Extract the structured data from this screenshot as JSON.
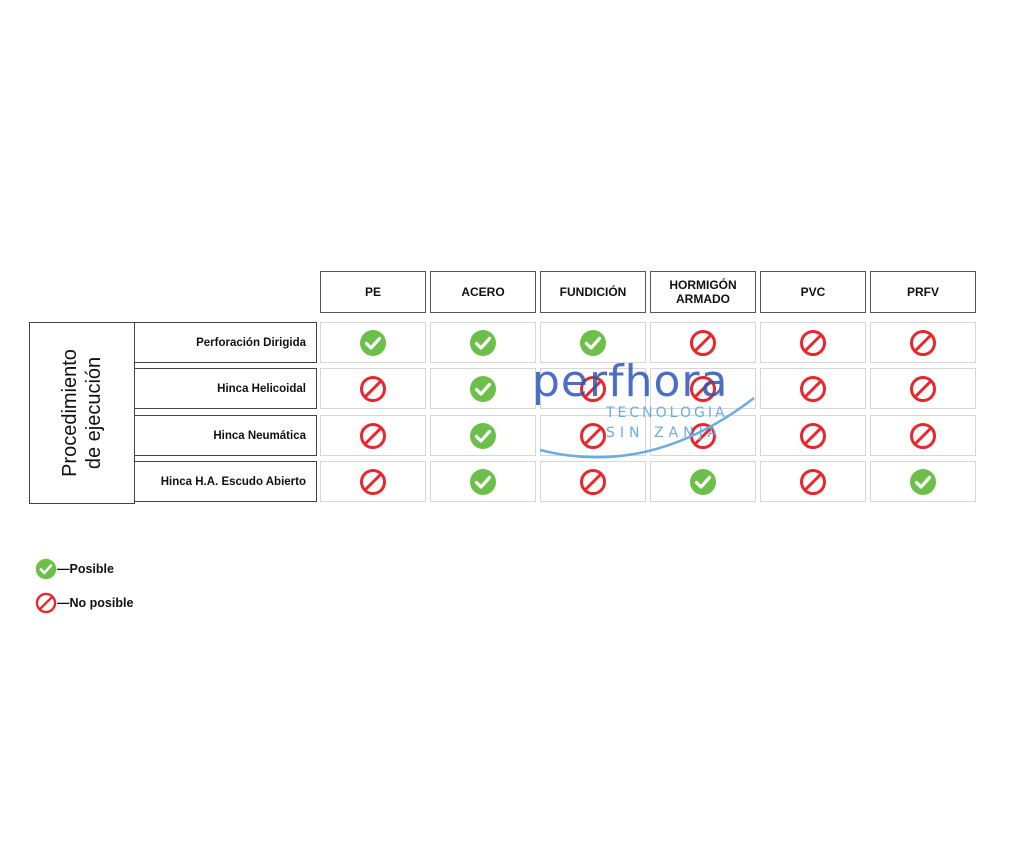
{
  "table": {
    "group_label": "Procedimiento\nde ejecución",
    "columns": [
      "PE",
      "ACERO",
      "FUNDICIÓN",
      "HORMIGÓN\nARMADO",
      "PVC",
      "PRFV"
    ],
    "rows": [
      {
        "label": "Perforación Dirigida",
        "values": [
          "posible",
          "posible",
          "posible",
          "no-posible",
          "no-posible",
          "no-posible"
        ]
      },
      {
        "label": "Hinca Helicoidal",
        "values": [
          "no-posible",
          "posible",
          "no-posible",
          "no-posible",
          "no-posible",
          "no-posible"
        ]
      },
      {
        "label": "Hinca Neumática",
        "values": [
          "no-posible",
          "posible",
          "no-posible",
          "no-posible",
          "no-posible",
          "no-posible"
        ]
      },
      {
        "label": "Hinca H.A. Escudo Abierto",
        "values": [
          "no-posible",
          "posible",
          "no-posible",
          "posible",
          "no-posible",
          "posible"
        ]
      }
    ]
  },
  "legend": [
    {
      "key": "posible",
      "label": "—Posible",
      "icon": "check-circle-icon"
    },
    {
      "key": "no-posible",
      "label": "—No posible",
      "icon": "prohibited-icon"
    }
  ],
  "colors": {
    "posible": "#6cc04a",
    "no_posible": "#e8262b",
    "watermark": "#2b57b8",
    "watermark_light": "#6aaee0"
  },
  "watermark": {
    "brand": "perfhora",
    "line1": "TECNOLOGIA",
    "line2": "SIN ZANJA"
  }
}
